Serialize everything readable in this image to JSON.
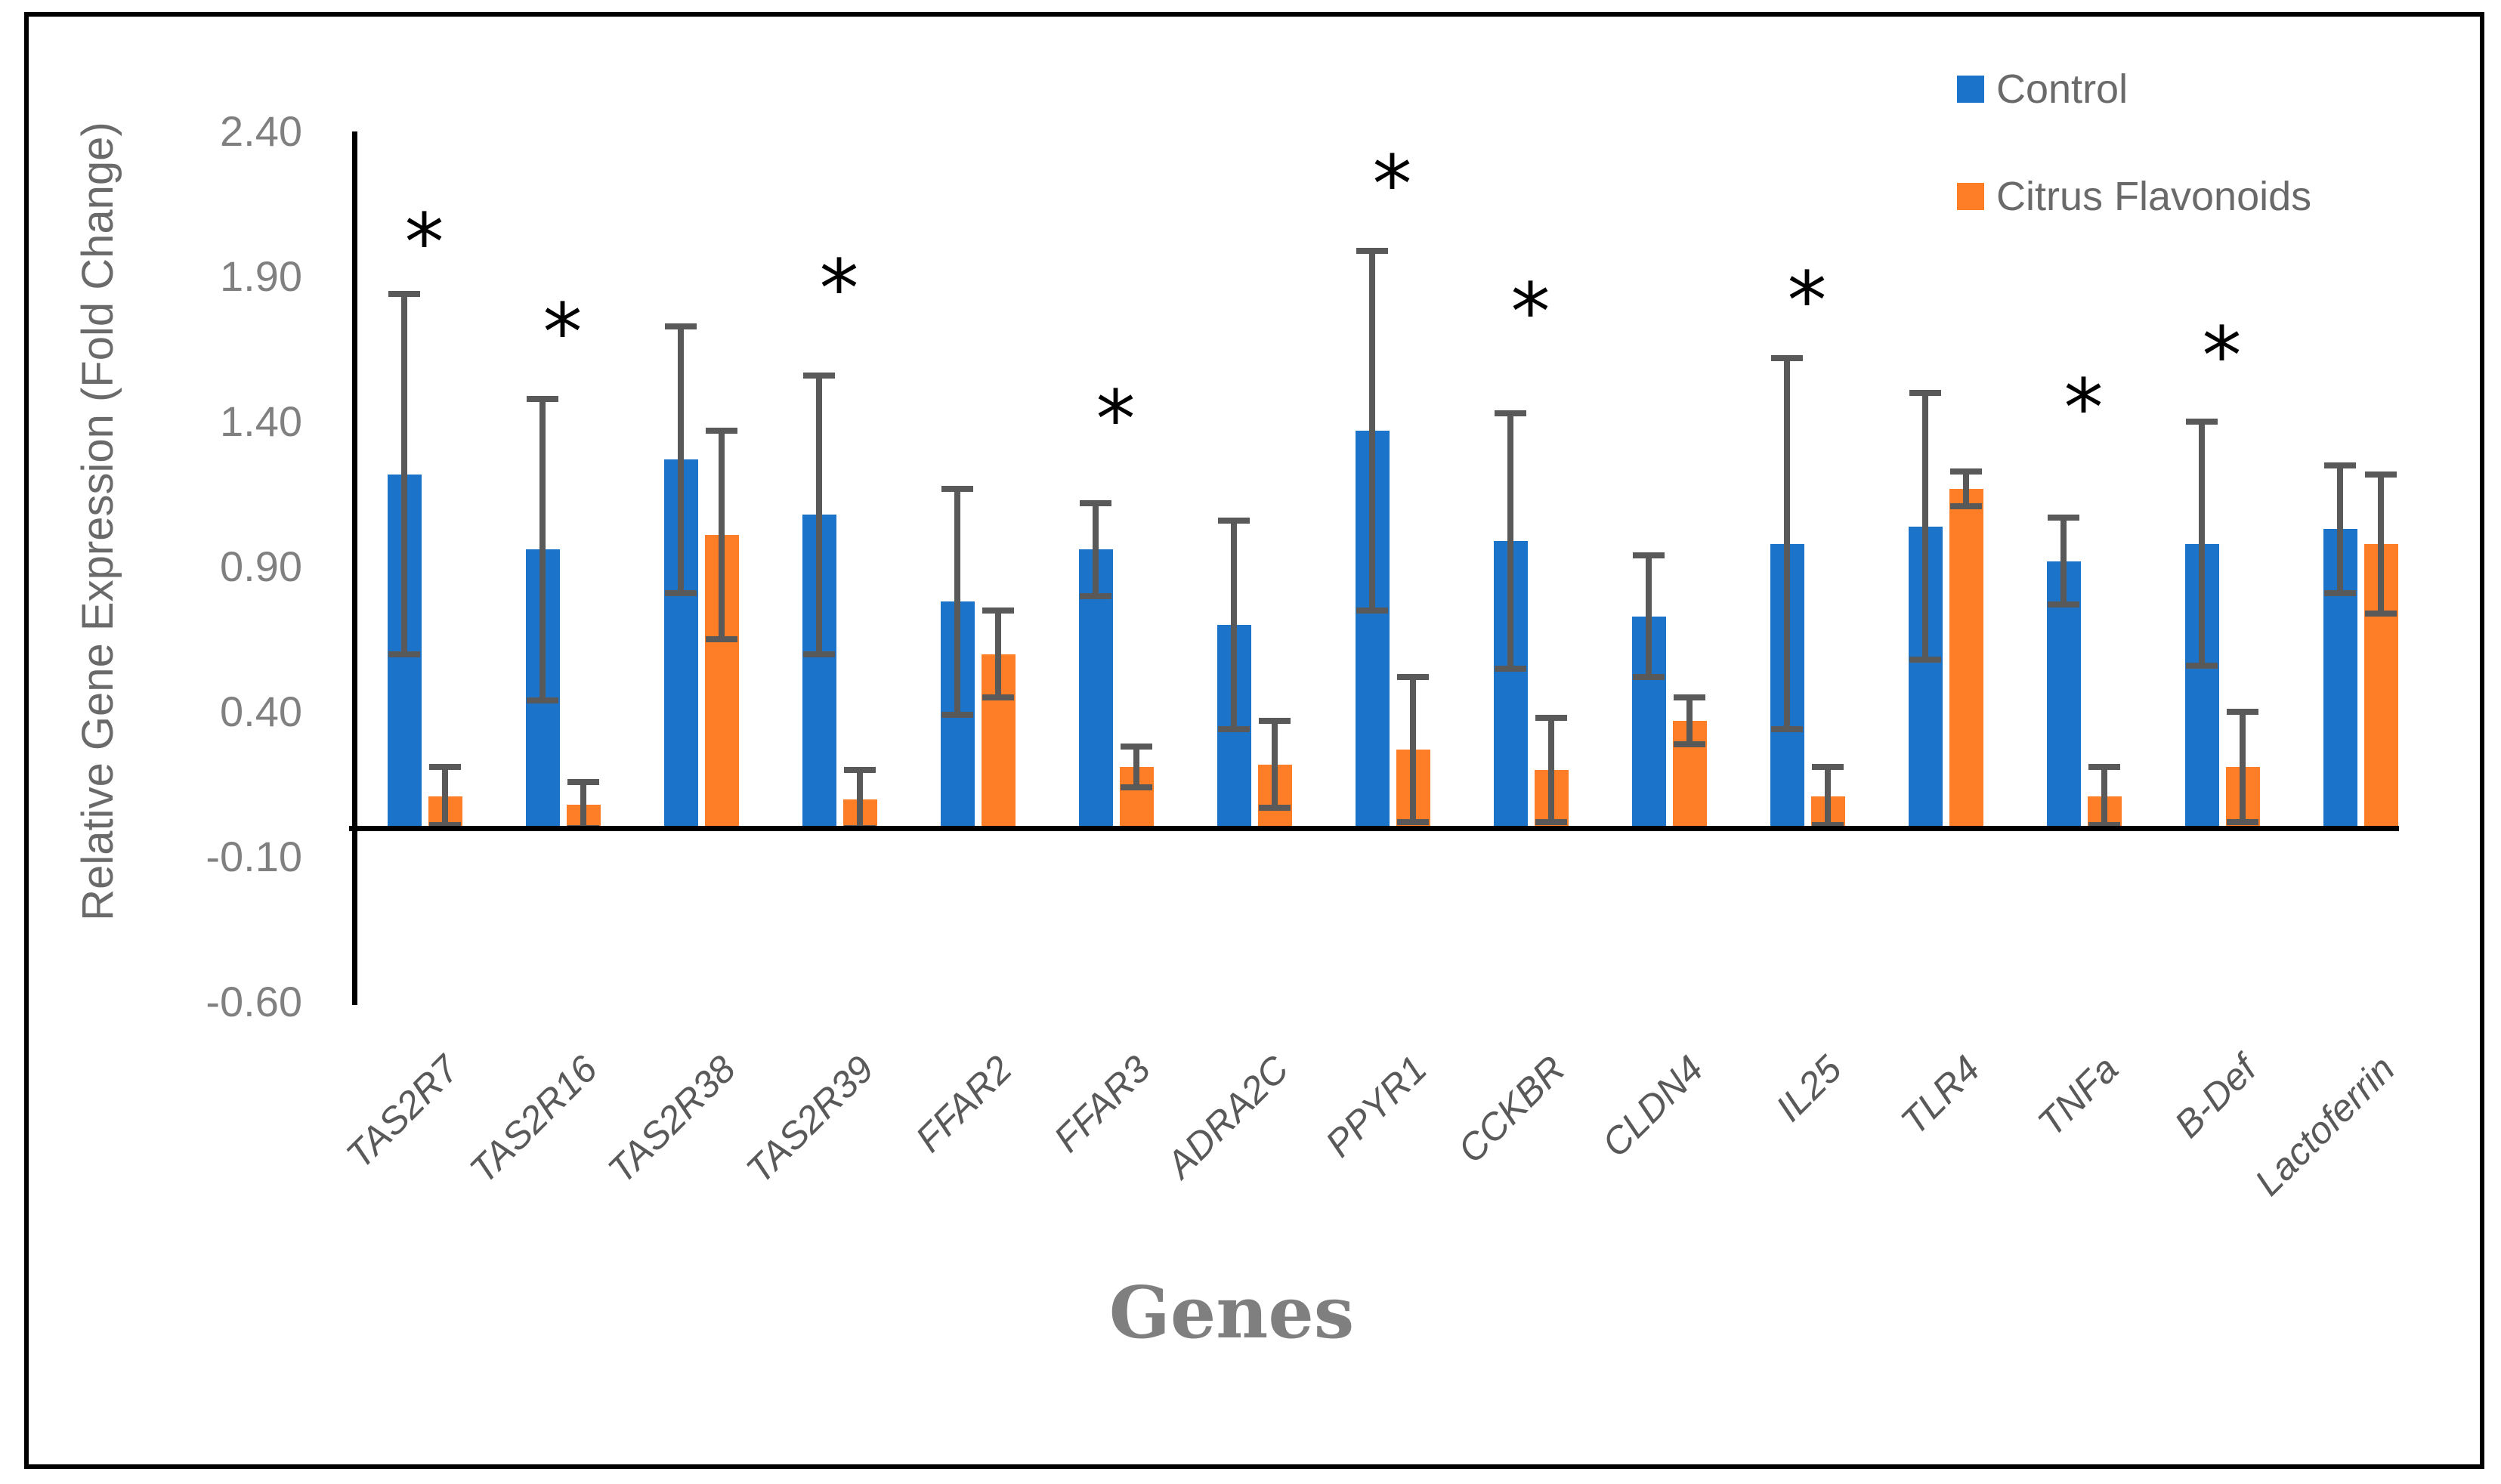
{
  "figure": {
    "y_axis_title": "Relative Gene Expression (Fold Change)",
    "x_axis_title": "Genes",
    "significance_marker": "*"
  },
  "legend": {
    "position": "top-right",
    "items": [
      {
        "label": "Control",
        "color": "#1B74C9"
      },
      {
        "label": "Citrus Flavonoids",
        "color": "#FD7E26"
      }
    ]
  },
  "chart_data": {
    "type": "bar",
    "grouped": true,
    "title": "",
    "xlabel": "Genes",
    "ylabel": "Relative Gene Expression (Fold Change)",
    "ylim": [
      -0.6,
      2.65
    ],
    "grid": false,
    "yticks": [
      2.4,
      1.9,
      1.4,
      0.9,
      0.4,
      -0.1,
      -0.6
    ],
    "ytick_labels": [
      "2.40",
      "1.90",
      "1.40",
      "0.90",
      "0.40",
      "-0.10",
      "-0.60"
    ],
    "categories": [
      "TAS2R7",
      "TAS2R16",
      "TAS2R38",
      "TAS2R39",
      "FFAR2",
      "FFAR3",
      "ADRA2C",
      "PPYR1",
      "CCKBR",
      "CLDN4",
      "IL25",
      "TLR4",
      "TNFa",
      "B-Def",
      "Lactoferrin"
    ],
    "series": [
      {
        "name": "Control",
        "color": "#1B74C9",
        "values": [
          1.22,
          0.96,
          1.27,
          1.08,
          0.78,
          0.96,
          0.7,
          1.37,
          0.99,
          0.73,
          0.98,
          1.04,
          0.92,
          0.98,
          1.03
        ],
        "errors": [
          0.62,
          0.52,
          0.46,
          0.48,
          0.39,
          0.16,
          0.36,
          0.62,
          0.44,
          0.21,
          0.64,
          0.46,
          0.15,
          0.42,
          0.22
        ]
      },
      {
        "name": "Citrus Flavonoids",
        "color": "#FD7E26",
        "values": [
          0.11,
          0.08,
          1.01,
          0.1,
          0.6,
          0.21,
          0.22,
          0.27,
          0.2,
          0.37,
          0.11,
          1.17,
          0.11,
          0.21,
          0.98
        ],
        "errors": [
          0.1,
          0.08,
          0.36,
          0.1,
          0.15,
          0.07,
          0.15,
          0.25,
          0.18,
          0.08,
          0.1,
          0.06,
          0.1,
          0.19,
          0.24
        ]
      }
    ],
    "error_bar_color": "#595959",
    "significance_asterisk_y": [
      2.05,
      1.74,
      null,
      1.89,
      null,
      1.44,
      null,
      2.25,
      1.81,
      null,
      1.85,
      null,
      1.48,
      1.66,
      null
    ]
  }
}
